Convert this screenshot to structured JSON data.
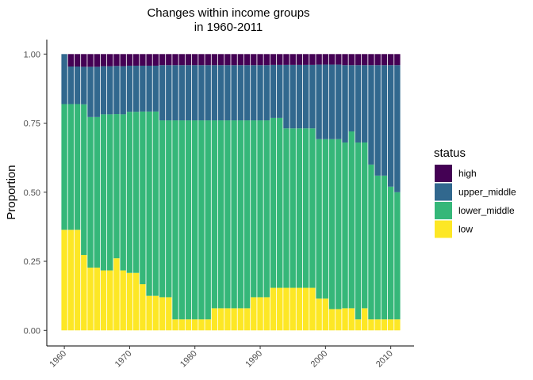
{
  "chart_data": {
    "type": "bar",
    "subtype": "stacked-proportion",
    "title_line1": "Changes within income groups",
    "title_line2": "in 1960-2011",
    "xlabel": "",
    "ylabel": "Proportion",
    "ylim": [
      0,
      1
    ],
    "y_ticks": [
      0,
      0.25,
      0.5,
      0.75,
      1.0
    ],
    "y_tick_labels": [
      "0.00",
      "0.25",
      "0.50",
      "0.75",
      "1.00"
    ],
    "x_ticks": [
      1960,
      1970,
      1980,
      1990,
      2000,
      2010
    ],
    "x_tick_labels": [
      "1960",
      "1970",
      "1980",
      "1990",
      "2000",
      "2010"
    ],
    "xlim": [
      1959,
      2012
    ],
    "legend_title": "status",
    "legend_position": "right",
    "categories": [
      1960,
      1961,
      1962,
      1963,
      1964,
      1965,
      1966,
      1967,
      1968,
      1969,
      1970,
      1971,
      1972,
      1973,
      1974,
      1975,
      1976,
      1977,
      1978,
      1979,
      1980,
      1981,
      1982,
      1983,
      1984,
      1985,
      1986,
      1987,
      1988,
      1989,
      1990,
      1991,
      1992,
      1993,
      1994,
      1995,
      1996,
      1997,
      1998,
      1999,
      2000,
      2001,
      2002,
      2003,
      2004,
      2005,
      2006,
      2007,
      2008,
      2009,
      2010,
      2011
    ],
    "series": [
      {
        "name": "low",
        "color": "#FDE725",
        "values": [
          0.364,
          0.364,
          0.364,
          0.273,
          0.227,
          0.227,
          0.217,
          0.217,
          0.261,
          0.217,
          0.208,
          0.208,
          0.167,
          0.125,
          0.125,
          0.12,
          0.12,
          0.04,
          0.04,
          0.04,
          0.04,
          0.04,
          0.04,
          0.08,
          0.08,
          0.08,
          0.08,
          0.08,
          0.08,
          0.12,
          0.12,
          0.12,
          0.154,
          0.154,
          0.154,
          0.154,
          0.154,
          0.154,
          0.154,
          0.115,
          0.115,
          0.077,
          0.077,
          0.08,
          0.08,
          0.04,
          0.08,
          0.04,
          0.04,
          0.04,
          0.04,
          0.04
        ]
      },
      {
        "name": "lower_middle",
        "color": "#35B779",
        "values": [
          0.455,
          0.455,
          0.455,
          0.545,
          0.545,
          0.545,
          0.565,
          0.565,
          0.522,
          0.565,
          0.583,
          0.583,
          0.625,
          0.667,
          0.667,
          0.64,
          0.64,
          0.72,
          0.72,
          0.72,
          0.72,
          0.72,
          0.72,
          0.68,
          0.68,
          0.68,
          0.68,
          0.68,
          0.68,
          0.64,
          0.64,
          0.64,
          0.615,
          0.615,
          0.577,
          0.577,
          0.577,
          0.577,
          0.577,
          0.577,
          0.577,
          0.615,
          0.615,
          0.6,
          0.64,
          0.64,
          0.6,
          0.56,
          0.52,
          0.52,
          0.48,
          0.46
        ]
      },
      {
        "name": "upper_middle",
        "color": "#31688E",
        "values": [
          0.181,
          0.136,
          0.136,
          0.136,
          0.182,
          0.182,
          0.174,
          0.174,
          0.174,
          0.174,
          0.167,
          0.167,
          0.166,
          0.166,
          0.166,
          0.2,
          0.2,
          0.2,
          0.2,
          0.2,
          0.2,
          0.2,
          0.2,
          0.2,
          0.2,
          0.2,
          0.2,
          0.2,
          0.2,
          0.2,
          0.2,
          0.2,
          0.192,
          0.192,
          0.23,
          0.23,
          0.23,
          0.23,
          0.23,
          0.27,
          0.27,
          0.27,
          0.27,
          0.28,
          0.24,
          0.28,
          0.28,
          0.36,
          0.4,
          0.4,
          0.44,
          0.46
        ]
      },
      {
        "name": "high",
        "color": "#440154",
        "values": [
          0.0,
          0.045,
          0.045,
          0.046,
          0.046,
          0.046,
          0.044,
          0.044,
          0.043,
          0.044,
          0.042,
          0.042,
          0.042,
          0.042,
          0.042,
          0.04,
          0.04,
          0.04,
          0.04,
          0.04,
          0.04,
          0.04,
          0.04,
          0.04,
          0.04,
          0.04,
          0.04,
          0.04,
          0.04,
          0.04,
          0.04,
          0.04,
          0.039,
          0.039,
          0.039,
          0.039,
          0.039,
          0.039,
          0.039,
          0.038,
          0.038,
          0.038,
          0.038,
          0.04,
          0.04,
          0.04,
          0.04,
          0.04,
          0.04,
          0.04,
          0.04,
          0.04
        ]
      }
    ],
    "legend_order": [
      "high",
      "upper_middle",
      "lower_middle",
      "low"
    ]
  }
}
